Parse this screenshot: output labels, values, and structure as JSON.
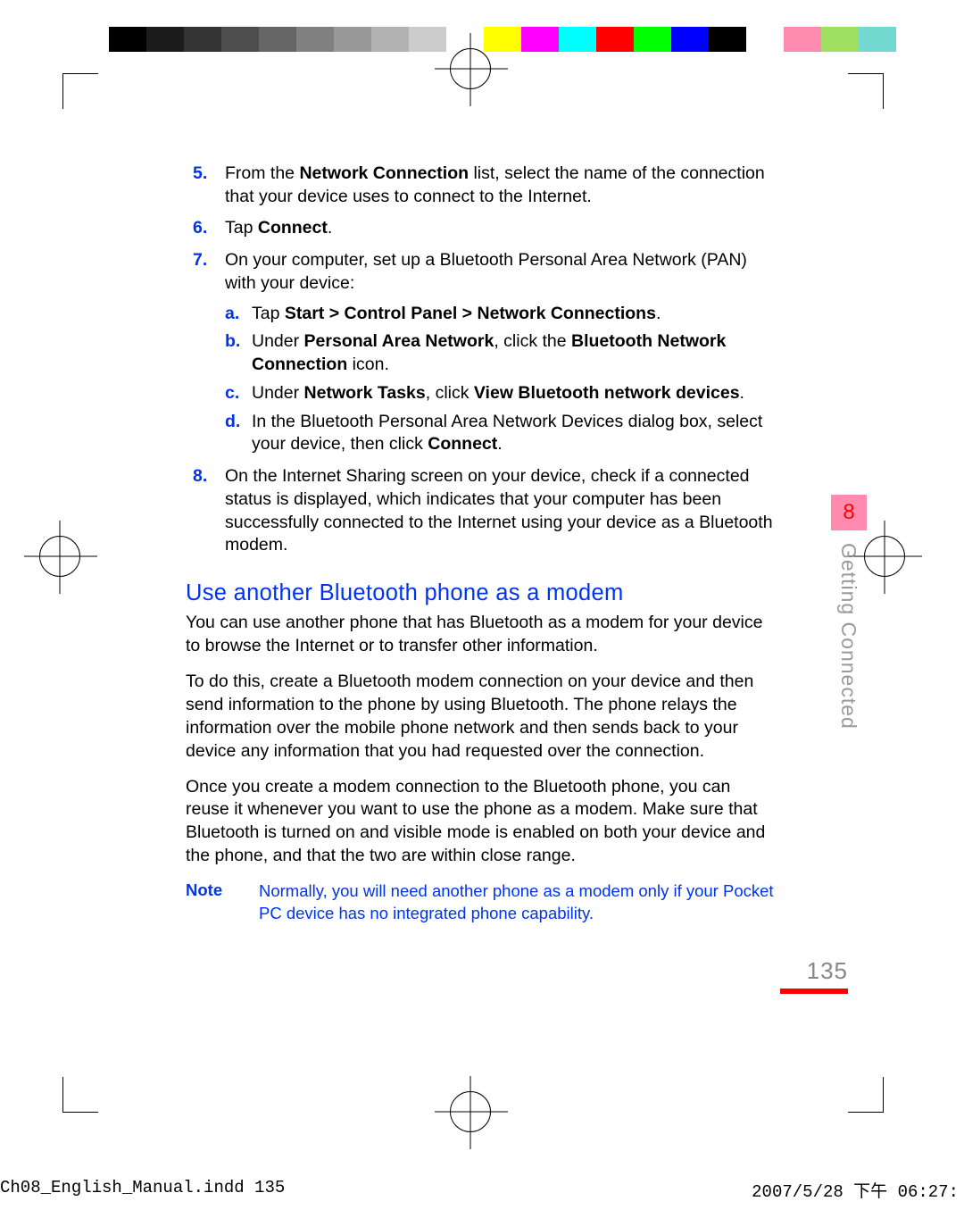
{
  "color_bar": [
    "#000000",
    "#1c1c1c",
    "#333333",
    "#4d4d4d",
    "#666666",
    "#808080",
    "#999999",
    "#b3b3b3",
    "#cccccc",
    "#ffffff",
    "#ffff00",
    "#ff00ff",
    "#00ffff",
    "#ff0000",
    "#00ff00",
    "#0000ff",
    "#000000",
    "#ffffff",
    "#ff8bb0",
    "#a0e060",
    "#72d8d0",
    "#ffffff"
  ],
  "steps": {
    "5": {
      "pre": "From the ",
      "b1": "Network Connection",
      "post": " list, select the name of the connection that your device uses to connect to the Internet."
    },
    "6": {
      "pre": "Tap ",
      "b1": "Connect",
      "post": "."
    },
    "7": {
      "plain": "On your computer, set up a Bluetooth Personal Area Network (PAN) with your device:"
    },
    "8": {
      "plain": "On the Internet Sharing screen on your device, check if a connected status is displayed, which indicates that your computer has been successfully connected to the Internet using your device as a Bluetooth modem."
    }
  },
  "sub": {
    "a": {
      "pre": "Tap ",
      "b1": "Start > Control Panel > Network Connections",
      "post": "."
    },
    "b": {
      "pre": "Under ",
      "b1": "Personal Area Network",
      "mid": ", click the ",
      "b2": "Bluetooth Network Connection",
      "post": " icon."
    },
    "c": {
      "pre": "Under ",
      "b1": "Network Tasks",
      "mid": ", click ",
      "b2": "View Bluetooth network devices",
      "post": "."
    },
    "d": {
      "pre": "In the Bluetooth Personal Area Network Devices dialog box, select your device, then click ",
      "b1": "Connect",
      "post": "."
    }
  },
  "section_heading": "Use another Bluetooth phone as a modem",
  "para1": "You can use another phone that has Bluetooth as a modem for your device to browse the Internet or to transfer other information.",
  "para2": "To do this, create a Bluetooth modem connection on your device and then send information to the phone by using Bluetooth. The phone relays the information over the mobile phone network and then sends back to your device any information that you had requested over the connection.",
  "para3": "Once you create a modem connection to the Bluetooth phone, you can reuse it whenever you want to use the phone as a modem. Make sure that Bluetooth is turned on and visible mode is enabled on both your device and the phone, and that the two are within close range.",
  "note_label": "Note",
  "note_text": "Normally, you will need another phone as a modem only if your Pocket PC device has no integrated phone capability.",
  "chapter_number": "8",
  "chapter_title": "Getting Connected",
  "page_number": "135",
  "slug_file": "Ch08_English_Manual.indd   135",
  "slug_time": "2007/5/28   下午 06:27:",
  "colors": {
    "accent_blue": "#0033ee",
    "red": "#ff0000",
    "tab_pink": "#ff8bb0",
    "grey_text": "#888888",
    "side_grey": "#9a9a9a"
  },
  "typography": {
    "body_pt": 19.5,
    "heading_pt": 25.5,
    "note_pt": 18.5,
    "pagenum_pt": 26,
    "mono_pt": 19
  }
}
